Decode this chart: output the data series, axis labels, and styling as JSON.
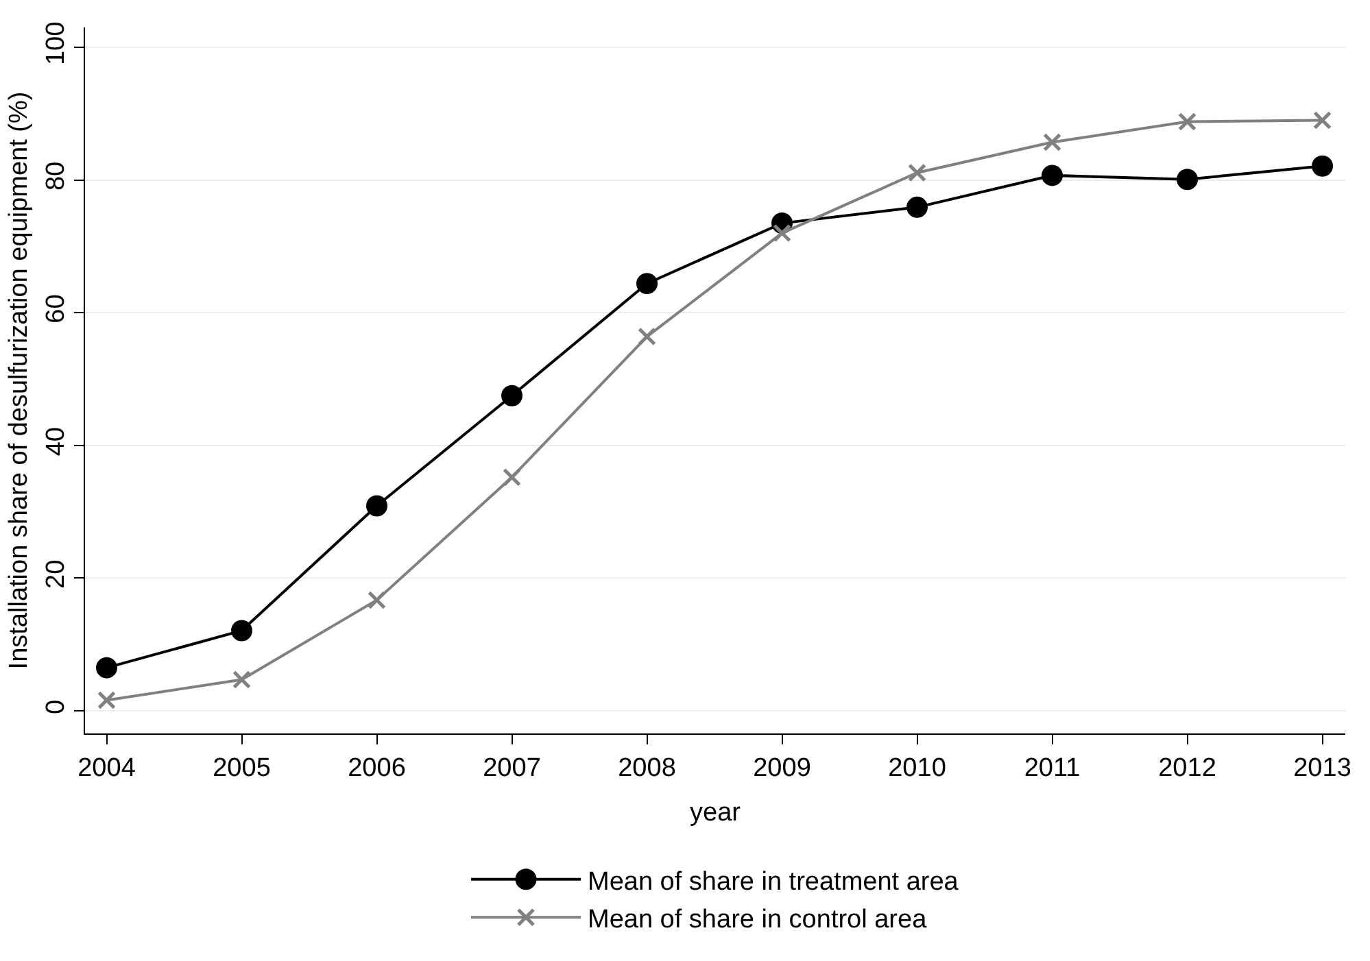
{
  "chart_data": {
    "type": "line",
    "xlabel": "year",
    "ylabel": "Installation share of desulfurization equipment (%)",
    "x": [
      2004,
      2005,
      2006,
      2007,
      2008,
      2009,
      2010,
      2011,
      2012,
      2013
    ],
    "series": [
      {
        "name": "Mean of share in treatment area",
        "color": "#000000",
        "marker": "circle",
        "values": [
          6.5,
          12.1,
          30.9,
          47.5,
          64.4,
          73.5,
          75.9,
          80.7,
          80.1,
          82.1
        ]
      },
      {
        "name": "Mean of share in control area",
        "color": "#808080",
        "marker": "cross",
        "values": [
          1.6,
          4.7,
          16.7,
          35.2,
          56.4,
          72.0,
          81.1,
          85.7,
          88.8,
          89.0
        ]
      }
    ],
    "xlim": [
      2003.84,
      2013.17
    ],
    "xticks": [
      2004,
      2005,
      2006,
      2007,
      2008,
      2009,
      2010,
      2011,
      2012,
      2013
    ],
    "ylim": [
      -3.4,
      103
    ],
    "yticks": [
      0,
      20,
      40,
      60,
      80,
      100
    ],
    "grid": "y",
    "legend": "bottom",
    "line_style": "solid"
  }
}
